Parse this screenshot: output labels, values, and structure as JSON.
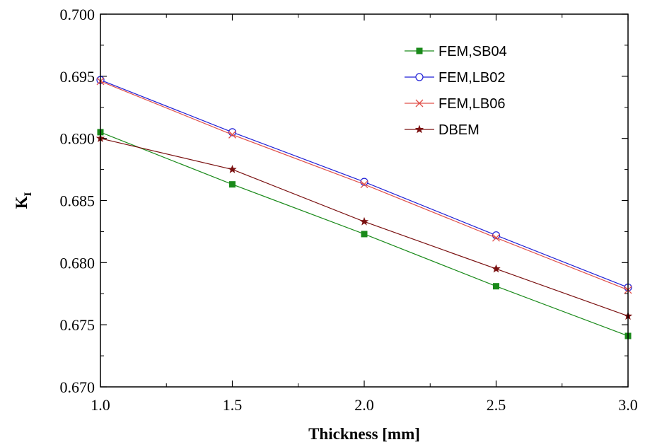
{
  "chart_data": {
    "type": "line",
    "xlabel": "Thickness [mm]",
    "ylabel_main": "K",
    "ylabel_sub": "I",
    "xlim": [
      1.0,
      3.0
    ],
    "ylim": [
      0.67,
      0.7
    ],
    "xticks": [
      "1.0",
      "1.5",
      "2.0",
      "2.5",
      "3.0"
    ],
    "yticks": [
      "0.670",
      "0.675",
      "0.680",
      "0.685",
      "0.690",
      "0.695",
      "0.700"
    ],
    "grid": false,
    "legend_position": "top-right",
    "x": [
      1.0,
      1.5,
      2.0,
      2.5,
      3.0
    ],
    "series": [
      {
        "name": "FEM,SB04",
        "color": "#1a8a1a",
        "marker": "square-filled",
        "values": [
          0.6905,
          0.6863,
          0.6823,
          0.6781,
          0.6741
        ]
      },
      {
        "name": "FEM,LB02",
        "color": "#1f1fd6",
        "marker": "circle-open",
        "values": [
          0.6947,
          0.6905,
          0.6865,
          0.6822,
          0.678
        ]
      },
      {
        "name": "FEM,LB06",
        "color": "#e0504a",
        "marker": "x",
        "values": [
          0.6946,
          0.6903,
          0.6863,
          0.682,
          0.6778
        ]
      },
      {
        "name": "DBEM",
        "color": "#7a1010",
        "marker": "star",
        "values": [
          0.69,
          0.6875,
          0.6833,
          0.6795,
          0.6757
        ]
      }
    ]
  }
}
